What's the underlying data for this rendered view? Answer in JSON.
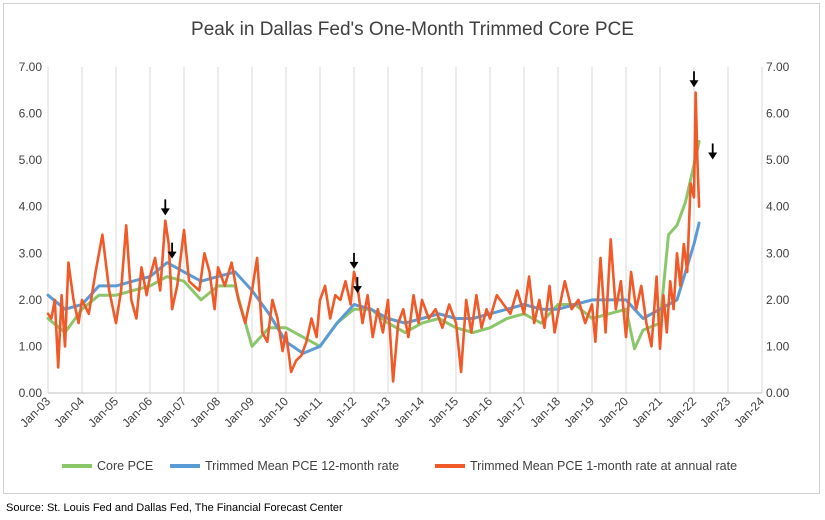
{
  "chart_data": {
    "type": "line",
    "title": "Peak in Dallas Fed's One-Month Trimmed Core PCE",
    "ylim": [
      0,
      7
    ],
    "xlim": [
      2003,
      2024
    ],
    "y_ticks": [
      "0.00",
      "1.00",
      "2.00",
      "3.00",
      "4.00",
      "5.00",
      "6.00",
      "7.00"
    ],
    "x_ticks": [
      "Jan-03",
      "Jan-04",
      "Jan-05",
      "Jan-06",
      "Jan-07",
      "Jan-08",
      "Jan-09",
      "Jan-10",
      "Jan-11",
      "Jan-12",
      "Jan-13",
      "Jan-14",
      "Jan-15",
      "Jan-16",
      "Jan-17",
      "Jan-18",
      "Jan-19",
      "Jan-20",
      "Jan-21",
      "Jan-22",
      "Jan-23",
      "Jan-24"
    ],
    "grid": "vertical",
    "legend_position": "bottom",
    "series": [
      {
        "name": "Core PCE",
        "color": "#8cc66b",
        "x": [
          2003.0,
          2003.5,
          2004.0,
          2004.5,
          2005.0,
          2005.5,
          2006.0,
          2006.5,
          2007.0,
          2007.5,
          2008.0,
          2008.5,
          2009.0,
          2009.5,
          2010.0,
          2010.5,
          2011.0,
          2011.5,
          2012.0,
          2012.5,
          2013.0,
          2013.5,
          2014.0,
          2014.5,
          2015.0,
          2015.5,
          2016.0,
          2016.5,
          2017.0,
          2017.5,
          2018.0,
          2018.5,
          2019.0,
          2019.5,
          2020.0,
          2020.25,
          2020.5,
          2021.0,
          2021.25,
          2021.5,
          2021.75,
          2022.0,
          2022.15
        ],
        "values": [
          1.6,
          1.3,
          1.8,
          2.1,
          2.1,
          2.2,
          2.3,
          2.5,
          2.4,
          2.0,
          2.3,
          2.3,
          1.0,
          1.4,
          1.4,
          1.2,
          1.0,
          1.5,
          1.8,
          1.8,
          1.5,
          1.3,
          1.5,
          1.6,
          1.4,
          1.3,
          1.4,
          1.6,
          1.7,
          1.5,
          1.9,
          1.9,
          1.6,
          1.7,
          1.8,
          0.95,
          1.35,
          1.5,
          3.4,
          3.6,
          4.1,
          4.9,
          5.4
        ]
      },
      {
        "name": "Trimmed Mean PCE 12-month rate",
        "color": "#5b9bd5",
        "x": [
          2003.0,
          2003.5,
          2004.0,
          2004.5,
          2005.0,
          2005.5,
          2006.0,
          2006.5,
          2007.0,
          2007.5,
          2008.0,
          2008.5,
          2009.0,
          2009.5,
          2010.0,
          2010.5,
          2011.0,
          2011.5,
          2012.0,
          2012.5,
          2013.0,
          2013.5,
          2014.0,
          2014.5,
          2015.0,
          2015.5,
          2016.0,
          2016.5,
          2017.0,
          2017.5,
          2018.0,
          2018.5,
          2019.0,
          2019.5,
          2020.0,
          2020.5,
          2021.0,
          2021.5,
          2022.0,
          2022.15
        ],
        "values": [
          2.1,
          1.8,
          1.9,
          2.3,
          2.3,
          2.4,
          2.5,
          2.8,
          2.6,
          2.4,
          2.5,
          2.6,
          2.2,
          1.7,
          1.1,
          0.85,
          1.0,
          1.5,
          1.9,
          1.8,
          1.6,
          1.5,
          1.6,
          1.7,
          1.6,
          1.6,
          1.7,
          1.8,
          1.9,
          1.8,
          1.8,
          1.9,
          2.0,
          2.0,
          2.0,
          1.6,
          1.8,
          2.0,
          3.2,
          3.65
        ]
      },
      {
        "name": "Trimmed Mean PCE 1-month rate at annual rate",
        "color": "#f05a28",
        "x": [
          2003.0,
          2003.1,
          2003.2,
          2003.3,
          2003.4,
          2003.5,
          2003.6,
          2003.75,
          2003.9,
          2004.0,
          2004.2,
          2004.4,
          2004.6,
          2004.8,
          2005.0,
          2005.15,
          2005.3,
          2005.45,
          2005.6,
          2005.75,
          2005.9,
          2006.0,
          2006.15,
          2006.3,
          2006.45,
          2006.55,
          2006.65,
          2006.8,
          2007.0,
          2007.15,
          2007.3,
          2007.45,
          2007.6,
          2007.75,
          2007.9,
          2008.0,
          2008.2,
          2008.4,
          2008.6,
          2008.8,
          2009.0,
          2009.15,
          2009.3,
          2009.45,
          2009.6,
          2009.75,
          2009.9,
          2010.0,
          2010.15,
          2010.3,
          2010.45,
          2010.6,
          2010.75,
          2010.9,
          2011.0,
          2011.15,
          2011.3,
          2011.45,
          2011.6,
          2011.75,
          2011.9,
          2012.0,
          2012.1,
          2012.25,
          2012.4,
          2012.55,
          2012.7,
          2012.85,
          2013.0,
          2013.15,
          2013.3,
          2013.45,
          2013.6,
          2013.75,
          2013.9,
          2014.0,
          2014.2,
          2014.4,
          2014.6,
          2014.8,
          2015.0,
          2015.15,
          2015.3,
          2015.45,
          2015.6,
          2015.75,
          2015.9,
          2016.0,
          2016.2,
          2016.4,
          2016.6,
          2016.8,
          2017.0,
          2017.15,
          2017.3,
          2017.45,
          2017.6,
          2017.75,
          2017.9,
          2018.0,
          2018.2,
          2018.4,
          2018.6,
          2018.8,
          2019.0,
          2019.1,
          2019.25,
          2019.4,
          2019.55,
          2019.7,
          2019.85,
          2020.0,
          2020.15,
          2020.3,
          2020.45,
          2020.6,
          2020.75,
          2020.9,
          2021.0,
          2021.1,
          2021.2,
          2021.3,
          2021.4,
          2021.5,
          2021.6,
          2021.7,
          2021.8,
          2021.9,
          2022.0,
          2022.05,
          2022.1,
          2022.15
        ],
        "values": [
          1.7,
          1.6,
          2.0,
          0.55,
          2.1,
          1.0,
          2.8,
          2.0,
          1.5,
          2.0,
          1.7,
          2.6,
          3.4,
          2.2,
          1.5,
          2.2,
          3.6,
          2.0,
          1.6,
          2.7,
          2.1,
          2.5,
          2.9,
          2.2,
          3.7,
          3.2,
          1.8,
          2.3,
          3.5,
          2.4,
          2.3,
          2.2,
          3.0,
          2.6,
          1.8,
          2.7,
          2.3,
          2.8,
          2.0,
          1.5,
          2.2,
          2.9,
          1.3,
          1.1,
          2.0,
          1.6,
          0.9,
          1.3,
          0.45,
          0.7,
          0.8,
          1.1,
          1.6,
          1.2,
          2.0,
          2.3,
          1.6,
          2.1,
          2.0,
          2.4,
          1.9,
          2.6,
          2.3,
          1.5,
          2.1,
          1.2,
          1.8,
          1.3,
          2.0,
          0.25,
          1.5,
          1.8,
          1.2,
          2.1,
          1.5,
          2.0,
          1.6,
          1.8,
          1.4,
          1.9,
          1.5,
          0.45,
          2.0,
          1.3,
          2.1,
          1.4,
          1.8,
          1.6,
          2.1,
          1.9,
          1.7,
          2.2,
          1.7,
          2.5,
          1.5,
          2.0,
          1.4,
          2.3,
          1.3,
          1.7,
          2.4,
          1.8,
          2.0,
          1.5,
          1.9,
          1.1,
          2.9,
          1.3,
          3.3,
          1.8,
          2.4,
          1.2,
          2.6,
          1.8,
          2.3,
          1.5,
          1.0,
          2.5,
          0.95,
          2.1,
          1.3,
          2.4,
          1.8,
          3.0,
          2.3,
          3.2,
          2.6,
          4.5,
          4.2,
          6.45,
          5.0,
          4.0
        ]
      }
    ],
    "annotations": [
      {
        "type": "arrow",
        "x": 2006.45,
        "y": 3.75
      },
      {
        "type": "arrow",
        "x": 2006.65,
        "y": 2.82
      },
      {
        "type": "arrow",
        "x": 2012.0,
        "y": 2.6
      },
      {
        "type": "arrow",
        "x": 2012.1,
        "y": 2.08
      },
      {
        "type": "arrow",
        "x": 2022.0,
        "y": 6.5
      },
      {
        "type": "arrow",
        "x": 2022.55,
        "y": 4.95
      }
    ],
    "source": "Source: St. Louis Fed and Dallas Fed, The Financial Forecast Center"
  }
}
